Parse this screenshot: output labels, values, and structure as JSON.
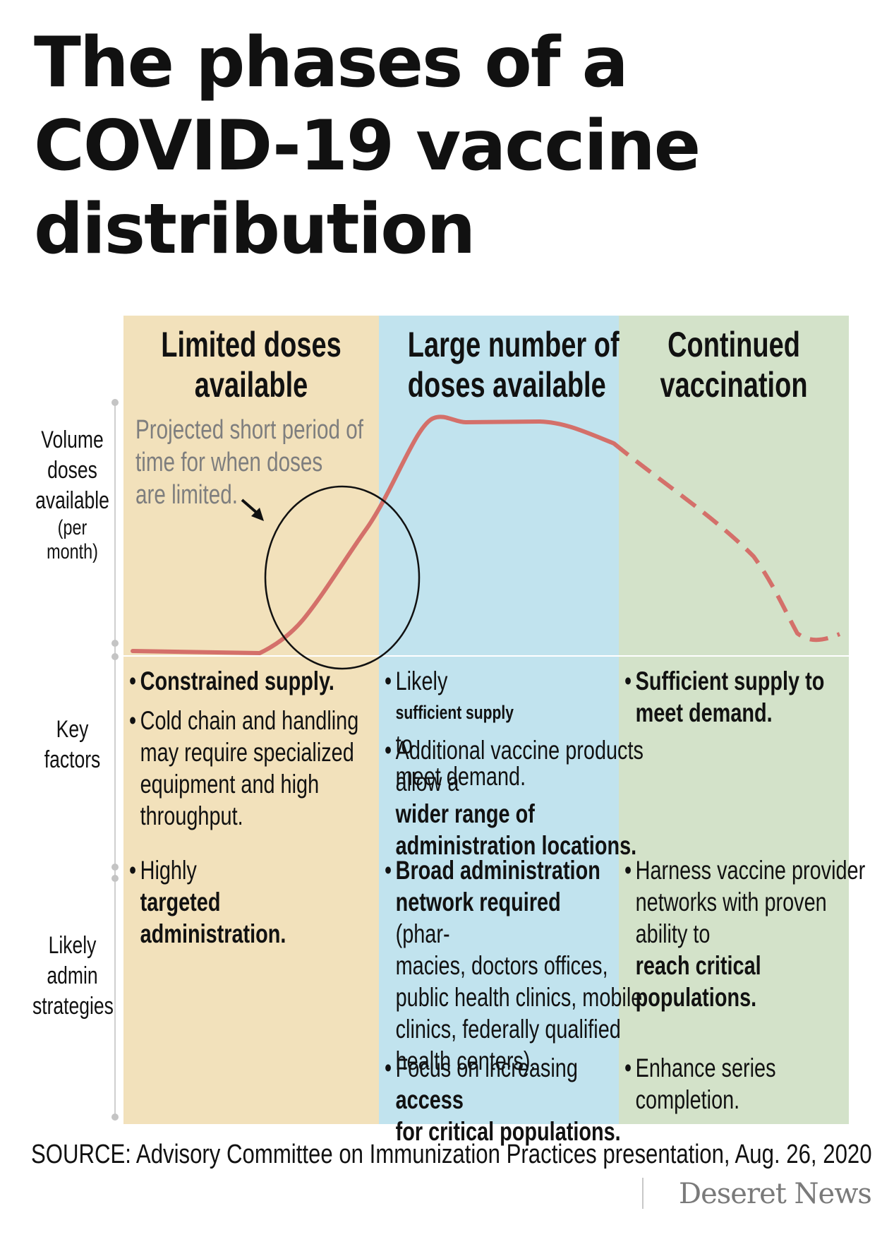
{
  "title": {
    "line1": "The phases of a",
    "line2": "COVID-19 vaccine",
    "line3": "distribution"
  },
  "columns": [
    {
      "line1": "Limited doses",
      "line2": "available",
      "color": "#f2e1bb"
    },
    {
      "line1": "Large number of",
      "line2": "doses available",
      "color": "#c1e3ee"
    },
    {
      "line1": "Continued",
      "line2": "vaccination",
      "color": "#d3e2c9"
    }
  ],
  "rows": {
    "volume": {
      "l1": "Volume",
      "l2": "doses",
      "l3": "available",
      "l4": "(per",
      "l5": "month)"
    },
    "key": {
      "l1": "Key",
      "l2": "factors"
    },
    "strategies": {
      "l1": "Likely",
      "l2": "admin",
      "l3": "strategies"
    }
  },
  "annotation": {
    "l1": "Projected short period of",
    "l2": "time for when doses",
    "l3": "are limited."
  },
  "curve": {
    "color": "#d4706a",
    "solid_phase": "limited and large",
    "dashed_phase": "continued"
  },
  "key_factors": {
    "col1": {
      "b1": "Constrained supply.",
      "b2": {
        "l1": "Cold chain and handling",
        "l2": "may require specialized",
        "l3": "equipment and high",
        "l4": "throughput."
      }
    },
    "col2": {
      "b1": {
        "l1a": "Likely ",
        "l1b": "sufficient supply",
        "l1c": " to",
        "l2": "meet demand."
      },
      "b2": {
        "l1": "Additional vaccine products",
        "l2a": "allow a ",
        "l2b": "wider range of",
        "l3": "administration locations."
      }
    },
    "col3": {
      "b1": {
        "l1": "Sufficient supply to",
        "l2": "meet demand."
      }
    }
  },
  "strategies": {
    "col1": {
      "b1": {
        "l1a": "Highly ",
        "l1b": "targeted",
        "l2": "administration."
      }
    },
    "col2": {
      "b1": {
        "l1": "Broad administration",
        "l2a": "network required",
        "l2b": " (phar-",
        "l3": "macies, doctors offices,",
        "l4": "public health clinics, mobile",
        "l5": "clinics, federally qualified",
        "l6": "health centers)."
      },
      "b2": {
        "l1a": "Focus on increasing ",
        "l1b": "access",
        "l2": "for critical populations."
      }
    },
    "col3": {
      "b1": {
        "l1": "Harness vaccine provider",
        "l2": "networks with proven",
        "l3a": "ability to ",
        "l3b": "reach critical",
        "l4": "populations."
      },
      "b2": {
        "l1": "Enhance series",
        "l2": "completion."
      }
    }
  },
  "source": "SOURCE: Advisory Committee on Immunization Practices presentation, Aug. 26, 2020",
  "logo": "Deseret News"
}
